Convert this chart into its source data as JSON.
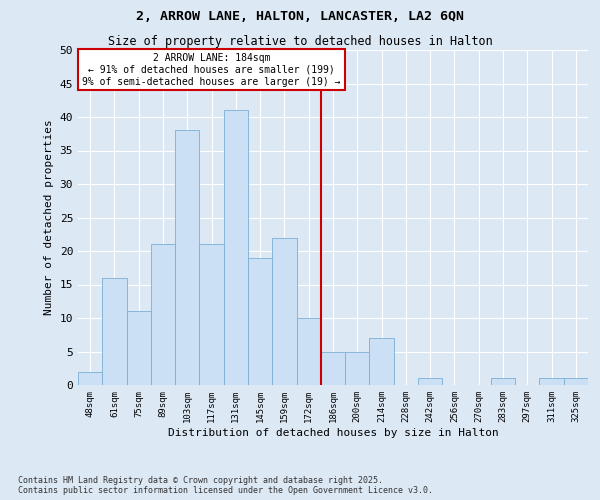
{
  "title": "2, ARROW LANE, HALTON, LANCASTER, LA2 6QN",
  "subtitle": "Size of property relative to detached houses in Halton",
  "xlabel": "Distribution of detached houses by size in Halton",
  "ylabel": "Number of detached properties",
  "categories": [
    "48sqm",
    "61sqm",
    "75sqm",
    "89sqm",
    "103sqm",
    "117sqm",
    "131sqm",
    "145sqm",
    "159sqm",
    "172sqm",
    "186sqm",
    "200sqm",
    "214sqm",
    "228sqm",
    "242sqm",
    "256sqm",
    "270sqm",
    "283sqm",
    "297sqm",
    "311sqm",
    "325sqm"
  ],
  "values": [
    2,
    16,
    11,
    21,
    38,
    21,
    41,
    19,
    22,
    10,
    5,
    5,
    7,
    0,
    1,
    0,
    0,
    1,
    0,
    1,
    1
  ],
  "bar_color": "#cce0f5",
  "bar_edge_color": "#7bafd4",
  "marker_label": "2 ARROW LANE: 184sqm",
  "annotation_line1": "← 91% of detached houses are smaller (199)",
  "annotation_line2": "9% of semi-detached houses are larger (19) →",
  "annotation_box_color": "#cc0000",
  "vline_color": "#cc0000",
  "ylim": [
    0,
    50
  ],
  "yticks": [
    0,
    5,
    10,
    15,
    20,
    25,
    30,
    35,
    40,
    45,
    50
  ],
  "background_color": "#dde8f5",
  "grid_color": "#ffffff",
  "footer": "Contains HM Land Registry data © Crown copyright and database right 2025.\nContains public sector information licensed under the Open Government Licence v3.0."
}
